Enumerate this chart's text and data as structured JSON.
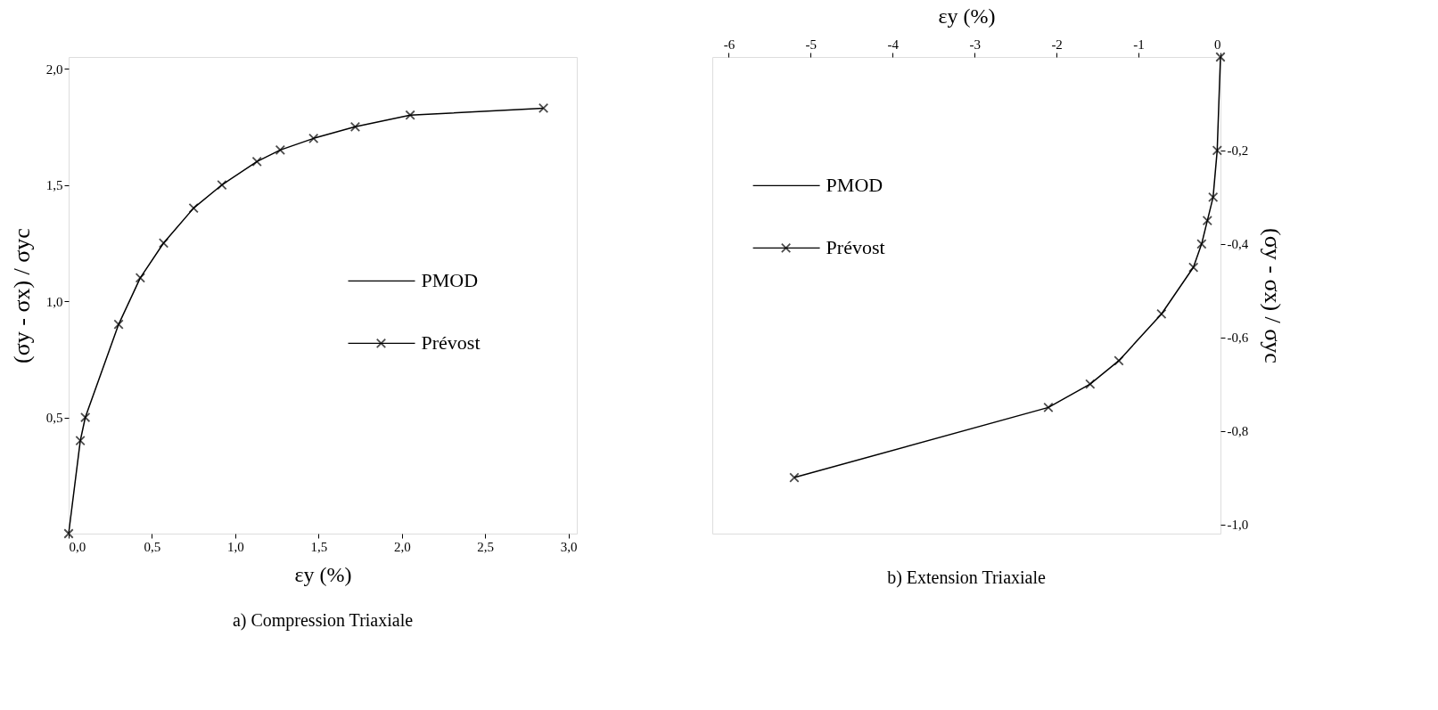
{
  "chart_data": [
    {
      "type": "line",
      "title": "a) Compression  Triaxiale",
      "xlabel": "εy (%)",
      "ylabel": "(σy - σx) / σyc",
      "xlim": [
        0,
        3.05
      ],
      "ylim": [
        0,
        2.05
      ],
      "xticks": [
        {
          "value": 0,
          "label": "0,0"
        },
        {
          "value": 0.5,
          "label": "0,5"
        },
        {
          "value": 1,
          "label": "1,0"
        },
        {
          "value": 1.5,
          "label": "1,5"
        },
        {
          "value": 2,
          "label": "2,0"
        },
        {
          "value": 2.5,
          "label": "2,5"
        },
        {
          "value": 3,
          "label": "3,0"
        }
      ],
      "yticks": [
        {
          "value": 0.5,
          "label": "0,5"
        },
        {
          "value": 1,
          "label": "1,0"
        },
        {
          "value": 1.5,
          "label": "1,5"
        },
        {
          "value": 2,
          "label": "2,0"
        }
      ],
      "x": [
        0,
        0.07,
        0.1,
        0.3,
        0.43,
        0.57,
        0.75,
        0.92,
        1.13,
        1.27,
        1.47,
        1.72,
        2.05,
        2.85
      ],
      "series": [
        {
          "name": "PMOD",
          "color": "#000000",
          "values": [
            0,
            0.4,
            0.5,
            0.9,
            1.1,
            1.25,
            1.4,
            1.5,
            1.6,
            1.65,
            1.7,
            1.75,
            1.8,
            1.83
          ]
        },
        {
          "name": "Prévost",
          "color": "#000000",
          "type": "scatter",
          "marker": "cross",
          "values": [
            0,
            0.4,
            0.5,
            0.9,
            1.1,
            1.25,
            1.4,
            1.5,
            1.6,
            1.65,
            1.7,
            1.75,
            1.8,
            1.83
          ]
        }
      ],
      "legend": "right",
      "grid": false
    },
    {
      "type": "line",
      "title": "b) Extension  Triaxiale",
      "xlabel": "εy  (%)",
      "ylabel": "(σy - σx) / σyc",
      "xlim": [
        -6.2,
        0
      ],
      "ylim": [
        -1.02,
        0
      ],
      "xticks": [
        -6,
        -5,
        -4,
        -3,
        -2,
        -1,
        0
      ],
      "yticks": [
        {
          "value": -0.2,
          "label": "-0,2"
        },
        {
          "value": -0.4,
          "label": "-0,4"
        },
        {
          "value": -0.6,
          "label": "-0,6"
        },
        {
          "value": -0.8,
          "label": "-0,8"
        },
        {
          "value": -1,
          "label": "-1,0"
        }
      ],
      "x": [
        0,
        -0.04,
        -0.09,
        -0.16,
        -0.23,
        -0.33,
        -0.72,
        -1.24,
        -1.59,
        -2.1,
        -5.2
      ],
      "series": [
        {
          "name": "PMOD",
          "color": "#000000",
          "values": [
            0,
            -0.2,
            -0.3,
            -0.35,
            -0.4,
            -0.45,
            -0.55,
            -0.65,
            -0.7,
            -0.75,
            -0.9
          ]
        },
        {
          "name": "Prévost",
          "color": "#000000",
          "type": "scatter",
          "marker": "cross",
          "values": [
            0,
            -0.2,
            -0.3,
            -0.35,
            -0.4,
            -0.45,
            -0.55,
            -0.65,
            -0.7,
            -0.75,
            -0.9
          ]
        }
      ],
      "legend": "top left",
      "grid": false
    }
  ]
}
